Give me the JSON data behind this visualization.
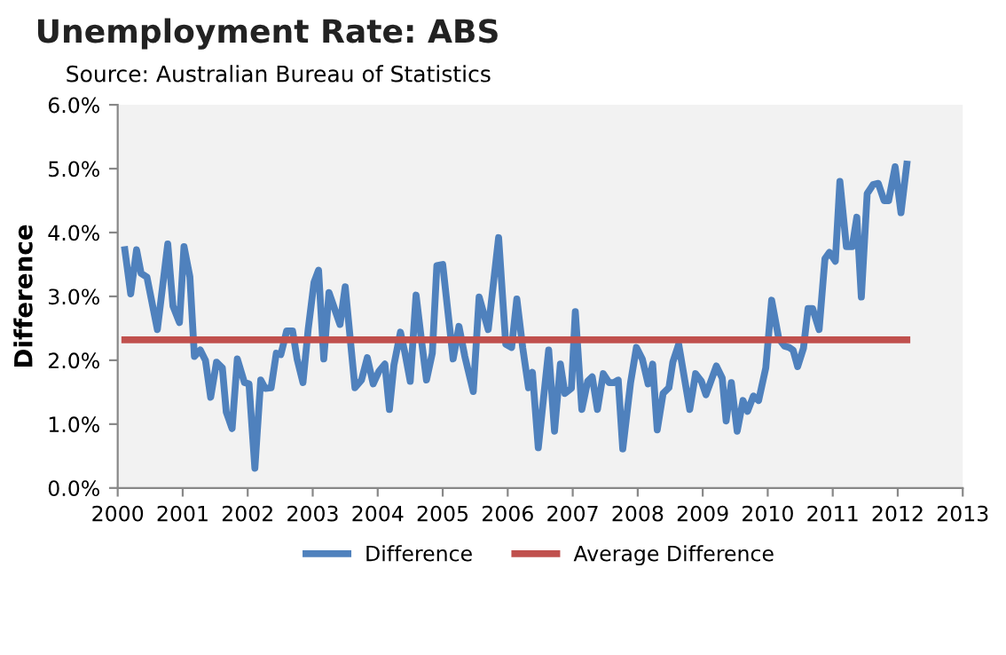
{
  "chart_data": {
    "type": "line",
    "title": "Unemployment Rate: ABS",
    "subtitle": "Source: Australian Bureau of Statistics",
    "ylabel": "Difference",
    "series": [
      {
        "name": "Difference",
        "color": "#4f81bd",
        "x": [
          2000.11,
          2000.2,
          2000.29,
          2000.36,
          2000.45,
          2000.61,
          2000.77,
          2000.85,
          2000.95,
          2001.02,
          2001.11,
          2001.18,
          2001.27,
          2001.35,
          2001.43,
          2001.52,
          2001.61,
          2001.67,
          2001.76,
          2001.84,
          2001.95,
          2002.02,
          2002.11,
          2002.2,
          2002.27,
          2002.36,
          2002.44,
          2002.51,
          2002.6,
          2002.69,
          2002.76,
          2002.85,
          2002.93,
          2003.02,
          2003.09,
          2003.17,
          2003.25,
          2003.42,
          2003.5,
          2003.65,
          2003.75,
          2003.84,
          2003.93,
          2004.02,
          2004.11,
          2004.18,
          2004.25,
          2004.35,
          2004.42,
          2004.5,
          2004.59,
          2004.67,
          2004.75,
          2004.84,
          2004.91,
          2005.0,
          2005.16,
          2005.25,
          2005.34,
          2005.47,
          2005.56,
          2005.7,
          2005.86,
          2005.97,
          2006.06,
          2006.14,
          2006.23,
          2006.32,
          2006.38,
          2006.47,
          2006.63,
          2006.72,
          2006.81,
          2006.88,
          2006.98,
          2007.04,
          2007.14,
          2007.23,
          2007.3,
          2007.38,
          2007.47,
          2007.56,
          2007.63,
          2007.7,
          2007.77,
          2007.89,
          2007.98,
          2008.07,
          2008.16,
          2008.23,
          2008.3,
          2008.39,
          2008.48,
          2008.54,
          2008.63,
          2008.8,
          2008.89,
          2008.98,
          2009.05,
          2009.21,
          2009.3,
          2009.36,
          2009.44,
          2009.53,
          2009.62,
          2009.69,
          2009.78,
          2009.86,
          2009.97,
          2010.06,
          2010.17,
          2010.26,
          2010.33,
          2010.39,
          2010.46,
          2010.55,
          2010.62,
          2010.69,
          2010.79,
          2010.88,
          2010.95,
          2011.04,
          2011.11,
          2011.21,
          2011.3,
          2011.37,
          2011.44,
          2011.53,
          2011.62,
          2011.7,
          2011.79,
          2011.86,
          2011.96,
          2012.05,
          2012.14
        ],
        "values": [
          3.73,
          3.04,
          3.73,
          3.36,
          3.3,
          2.48,
          3.82,
          2.85,
          2.59,
          3.78,
          3.31,
          2.06,
          2.16,
          2.0,
          1.42,
          1.97,
          1.88,
          1.19,
          0.93,
          2.02,
          1.65,
          1.63,
          0.31,
          1.69,
          1.56,
          1.57,
          2.11,
          2.09,
          2.46,
          2.46,
          2.02,
          1.65,
          2.48,
          3.22,
          3.41,
          2.02,
          3.06,
          2.56,
          3.15,
          1.57,
          1.69,
          2.04,
          1.63,
          1.83,
          1.94,
          1.23,
          1.93,
          2.44,
          2.11,
          1.67,
          3.02,
          2.34,
          1.69,
          2.11,
          3.48,
          3.5,
          2.02,
          2.53,
          2.06,
          1.51,
          2.99,
          2.48,
          3.92,
          2.25,
          2.2,
          2.96,
          2.2,
          1.57,
          1.81,
          0.63,
          2.16,
          0.89,
          1.94,
          1.48,
          1.56,
          2.76,
          1.23,
          1.67,
          1.74,
          1.23,
          1.79,
          1.65,
          1.65,
          1.69,
          0.61,
          1.65,
          2.2,
          2.02,
          1.63,
          1.94,
          0.91,
          1.48,
          1.57,
          1.97,
          2.25,
          1.23,
          1.79,
          1.67,
          1.46,
          1.91,
          1.72,
          1.05,
          1.65,
          0.89,
          1.37,
          1.2,
          1.44,
          1.37,
          1.88,
          2.94,
          2.34,
          2.22,
          2.2,
          2.16,
          1.9,
          2.19,
          2.81,
          2.81,
          2.48,
          3.59,
          3.69,
          3.55,
          4.8,
          3.78,
          3.78,
          4.24,
          2.99,
          4.61,
          4.75,
          4.77,
          4.5,
          4.5,
          5.03,
          4.31,
          5.07
        ]
      },
      {
        "name": "Average Difference",
        "color": "#c0504d",
        "x": [
          2000.11,
          2012.14
        ],
        "values": [
          2.32,
          2.32
        ]
      }
    ],
    "xlim": [
      2000,
      2013
    ],
    "xticks": [
      2000,
      2001,
      2002,
      2003,
      2004,
      2005,
      2006,
      2007,
      2008,
      2009,
      2010,
      2011,
      2012,
      2013
    ],
    "ylim": [
      0,
      6
    ],
    "yticks": [
      {
        "value": 0,
        "label": "0.0%"
      },
      {
        "value": 1,
        "label": "1.0%"
      },
      {
        "value": 2,
        "label": "2.0%"
      },
      {
        "value": 3,
        "label": "3.0%"
      },
      {
        "value": 4,
        "label": "4.0%"
      },
      {
        "value": 5,
        "label": "5.0%"
      },
      {
        "value": 6,
        "label": "6.0%"
      }
    ],
    "legend": "bottom",
    "marker": "none",
    "line_style": "solid"
  }
}
